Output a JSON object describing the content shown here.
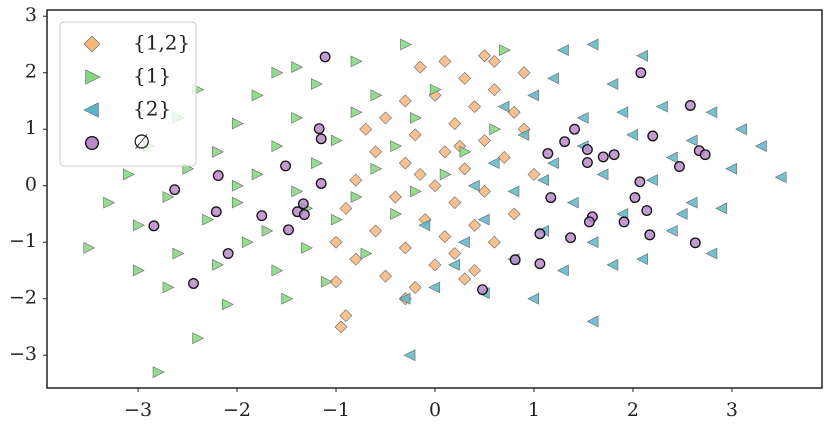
{
  "chart_data": {
    "type": "scatter",
    "xlim": [
      -3.92,
      3.91
    ],
    "ylim": [
      -3.58,
      3.11
    ],
    "xticks": [
      {
        "value": -3,
        "label": "−3"
      },
      {
        "value": -2,
        "label": "−2"
      },
      {
        "value": -1,
        "label": "−1"
      },
      0,
      1,
      2,
      3
    ],
    "yticks": [
      {
        "value": -3,
        "label": "−3"
      },
      {
        "value": -2,
        "label": "−2"
      },
      {
        "value": -1,
        "label": "−1"
      },
      0,
      1,
      2,
      3
    ],
    "grid": false,
    "legend": "upper left",
    "series": [
      {
        "name": "{1,2}",
        "color": "#f8b67c",
        "marker": "diamond",
        "x": [
          0.1,
          0.5,
          0.6,
          0.9,
          -0.15,
          0.3,
          0.6,
          0.0,
          -0.3,
          0.4,
          0.8,
          0.2,
          -0.5,
          0.9,
          -0.2,
          0.5,
          0.1,
          -0.6,
          0.7,
          -0.3,
          0.3,
          1.0,
          -0.8,
          0.0,
          0.5,
          -0.4,
          0.2,
          -0.9,
          0.8,
          -0.1,
          0.4,
          -0.6,
          0.1,
          -1.0,
          0.6,
          -0.3,
          0.2,
          -0.8,
          0.0,
          0.4,
          -0.5,
          -0.2,
          -1.0,
          -0.3,
          -0.9,
          -0.95,
          0.3,
          -0.7,
          0.25,
          -0.15
        ],
        "values": [
          2.2,
          2.3,
          2.2,
          2.0,
          2.1,
          1.9,
          1.7,
          1.6,
          1.5,
          1.4,
          1.3,
          1.1,
          1.2,
          1.0,
          0.9,
          0.8,
          0.6,
          0.6,
          0.5,
          0.4,
          0.3,
          0.2,
          0.1,
          0.0,
          -0.1,
          -0.2,
          -0.3,
          -0.4,
          -0.5,
          -0.6,
          -0.7,
          -0.8,
          -0.9,
          -1.0,
          -1.0,
          -1.1,
          -1.2,
          -1.3,
          -1.4,
          -1.5,
          -1.6,
          -1.8,
          -1.7,
          -2.0,
          -2.3,
          -2.5,
          -1.65,
          1.0,
          0.7,
          0.2
        ]
      },
      {
        "name": "{1}",
        "color": "#82d67e",
        "marker": "triangle-right",
        "x": [
          -2.8,
          -2.4,
          -2.1,
          -1.5,
          -2.7,
          -3.0,
          -2.2,
          -1.6,
          -1.1,
          -3.5,
          -2.6,
          -1.9,
          -1.3,
          -0.7,
          -3.0,
          -2.3,
          -1.7,
          -1.0,
          -0.4,
          -3.3,
          -2.7,
          -2.0,
          -1.4,
          -0.8,
          -0.2,
          -3.1,
          -2.5,
          -1.8,
          -1.2,
          -0.6,
          0.1,
          -2.9,
          -2.2,
          -1.6,
          -1.0,
          -0.4,
          0.3,
          -2.6,
          -2.0,
          -1.4,
          -0.8,
          -0.2,
          0.6,
          -2.4,
          -1.8,
          -1.2,
          -0.6,
          0.0,
          -1.4,
          -0.8,
          -0.3,
          0.7,
          -1.6,
          -2.0,
          -1.3
        ],
        "values": [
          -3.3,
          -2.7,
          -2.1,
          -2.0,
          -1.8,
          -1.5,
          -1.4,
          -1.5,
          -1.7,
          -1.1,
          -1.2,
          -1.0,
          -1.1,
          -1.2,
          -0.7,
          -0.6,
          -0.8,
          -0.6,
          -0.5,
          -0.3,
          -0.2,
          -0.3,
          -0.1,
          -0.2,
          -0.1,
          0.2,
          0.3,
          0.2,
          0.4,
          0.3,
          0.2,
          0.7,
          0.6,
          0.7,
          0.8,
          0.7,
          0.6,
          1.2,
          1.1,
          1.2,
          1.3,
          1.2,
          1.0,
          1.7,
          1.6,
          1.8,
          1.6,
          1.7,
          2.1,
          2.2,
          2.5,
          2.4,
          2.0,
          0.0,
          -0.4
        ]
      },
      {
        "name": "{2}",
        "color": "#5ab6c6",
        "marker": "triangle-left",
        "x": [
          3.5,
          3.3,
          3.0,
          2.8,
          2.6,
          2.8,
          2.4,
          2.1,
          1.6,
          1.3,
          1.8,
          2.3,
          1.5,
          2.0,
          1.0,
          0.9,
          1.2,
          1.7,
          2.2,
          0.6,
          0.8,
          1.4,
          1.9,
          2.5,
          0.5,
          1.1,
          1.6,
          2.1,
          0.3,
          0.8,
          1.3,
          1.8,
          0.0,
          0.5,
          1.0,
          1.6,
          -0.25,
          -0.3,
          0.2,
          -0.1,
          0.4,
          1.1,
          1.5,
          2.6,
          3.1,
          2.9,
          1.2,
          0.7,
          1.9,
          2.4
        ],
        "values": [
          0.15,
          0.7,
          0.3,
          1.3,
          -0.3,
          -1.2,
          -0.8,
          2.3,
          2.5,
          2.4,
          1.8,
          1.4,
          1.2,
          0.9,
          1.6,
          0.9,
          0.4,
          0.2,
          0.1,
          0.4,
          -0.1,
          -0.3,
          -0.5,
          -0.5,
          -0.6,
          -0.8,
          -1.0,
          -1.3,
          -1.0,
          -1.3,
          -1.5,
          -1.4,
          -1.8,
          -1.9,
          -2.0,
          -2.4,
          -3.0,
          -2.0,
          -1.4,
          -0.7,
          0.0,
          0.1,
          0.7,
          0.8,
          1.0,
          -0.4,
          1.9,
          1.4,
          1.3,
          0.5
        ]
      },
      {
        "name": "∅",
        "color": "#b98ac8",
        "marker": "circle",
        "x": [
          -1.11,
          2.08,
          2.58,
          -1.17,
          -1.15,
          1.41,
          2.2,
          1.31,
          1.54,
          1.14,
          1.7,
          1.81,
          1.54,
          2.67,
          2.73,
          2.47,
          -1.51,
          -2.19,
          2.07,
          -1.15,
          -2.63,
          1.17,
          2.02,
          -1.33,
          -2.21,
          2.14,
          -1.39,
          -1.32,
          -1.75,
          1.59,
          1.56,
          1.91,
          -2.84,
          -1.48,
          1.06,
          2.17,
          1.37,
          2.63,
          -2.09,
          0.81,
          1.06,
          -2.44,
          0.48
        ],
        "values": [
          2.28,
          2.0,
          1.42,
          1.01,
          0.83,
          1.0,
          0.88,
          0.78,
          0.64,
          0.57,
          0.51,
          0.55,
          0.41,
          0.62,
          0.55,
          0.34,
          0.35,
          0.18,
          0.07,
          0.04,
          -0.07,
          -0.21,
          -0.21,
          -0.32,
          -0.46,
          -0.44,
          -0.46,
          -0.51,
          -0.53,
          -0.55,
          -0.64,
          -0.64,
          -0.71,
          -0.78,
          -0.85,
          -0.87,
          -0.92,
          -1.01,
          -1.2,
          -1.31,
          -1.38,
          -1.73,
          -1.84
        ]
      }
    ]
  }
}
